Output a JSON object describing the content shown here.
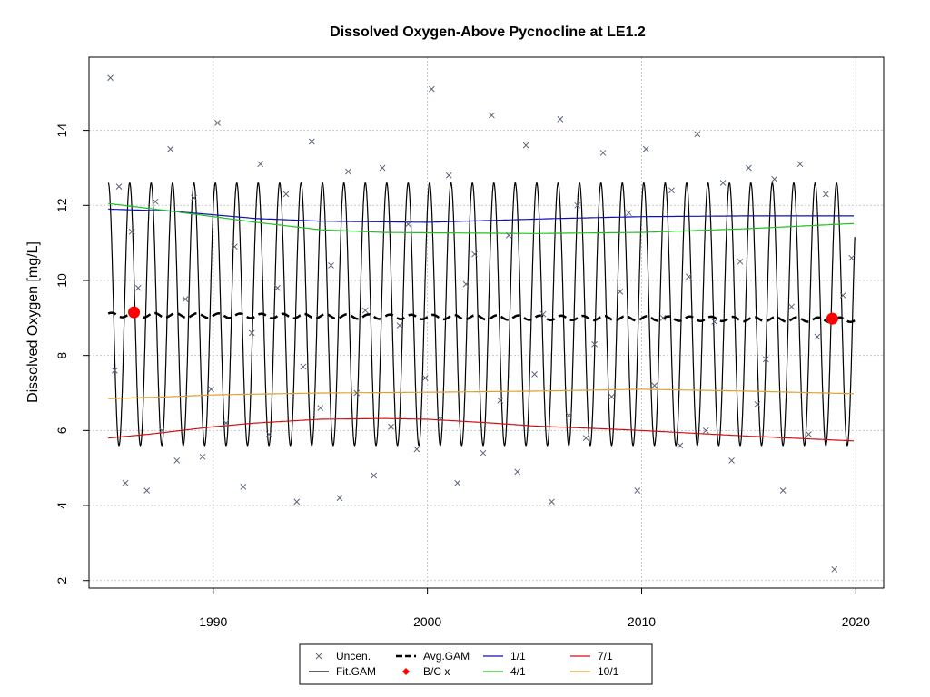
{
  "chart_data": {
    "type": "scatter",
    "title": "Dissolved Oxygen-Above Pycnocline at LE1.2",
    "xlabel": "",
    "ylabel": "Dissolved Oxygen [mg/L]",
    "xlim": [
      1984.2,
      2021.3
    ],
    "ylim": [
      1.8,
      15.95
    ],
    "x_ticks": [
      1990,
      2000,
      2010,
      2020
    ],
    "y_ticks": [
      2,
      4,
      6,
      8,
      10,
      12,
      14
    ],
    "grid": true,
    "legend_position": "bottom-outside",
    "fit_gam": {
      "name": "Fit.GAM",
      "start": 1985.1,
      "end": 2019.95,
      "peak_winter": 12.6,
      "trough_summer": 5.6,
      "cycle_length_years": 1
    },
    "series": [
      {
        "name": "1/1",
        "color": "#1010b0",
        "x": [
          1985.1,
          1988,
          1990,
          1992,
          1995,
          2000,
          2003,
          2006,
          2010,
          2015,
          2020
        ],
        "values": [
          11.9,
          11.85,
          11.75,
          11.65,
          11.58,
          11.55,
          11.6,
          11.65,
          11.7,
          11.72,
          11.72
        ]
      },
      {
        "name": "4/1",
        "color": "#20c020",
        "x": [
          1985.1,
          1988,
          1990,
          1992,
          1995,
          1998,
          2000,
          2005,
          2010,
          2015,
          2020
        ],
        "values": [
          12.05,
          11.85,
          11.7,
          11.55,
          11.35,
          11.28,
          11.27,
          11.25,
          11.28,
          11.38,
          11.52
        ]
      },
      {
        "name": "7/1",
        "color": "#d01010",
        "x": [
          1985.1,
          1987,
          1990,
          1992,
          1995,
          1998,
          2000,
          2003,
          2005,
          2008,
          2010,
          2015,
          2020
        ],
        "values": [
          5.8,
          5.9,
          6.1,
          6.2,
          6.3,
          6.32,
          6.3,
          6.2,
          6.12,
          6.05,
          6.0,
          5.85,
          5.72
        ]
      },
      {
        "name": "10/1",
        "color": "#e0a030",
        "x": [
          1985.1,
          1988,
          1990,
          1995,
          2000,
          2005,
          2010,
          2015,
          2020
        ],
        "values": [
          6.85,
          6.9,
          6.95,
          7.0,
          7.02,
          7.05,
          7.1,
          7.05,
          6.98
        ]
      }
    ],
    "avg_gam": {
      "name": "Avg.GAM",
      "start": 1985.1,
      "end": 2019.95,
      "values_start": 9.08,
      "values_end": 8.95
    },
    "bc_points": {
      "name": "B/C x",
      "color": "#ff0000",
      "x": [
        1986.3,
        2018.9
      ],
      "values": [
        9.15,
        8.98
      ]
    },
    "uncensored": {
      "name": "Uncen.",
      "color": "#5a6678",
      "x": [
        1985.2,
        1985.4,
        1985.6,
        1985.9,
        1986.2,
        1986.5,
        1986.9,
        1987.3,
        1987.6,
        1988.0,
        1988.3,
        1988.7,
        1989.1,
        1989.5,
        1989.9,
        1990.2,
        1990.6,
        1991.0,
        1991.4,
        1991.8,
        1992.2,
        1992.6,
        1993.0,
        1993.4,
        1993.9,
        1994.2,
        1994.6,
        1995.0,
        1995.5,
        1995.9,
        1996.3,
        1996.7,
        1997.1,
        1997.5,
        1997.9,
        1998.3,
        1998.7,
        1999.1,
        1999.5,
        1999.9,
        2000.2,
        2000.6,
        2001.0,
        2001.4,
        2001.8,
        2002.2,
        2002.6,
        2003.0,
        2003.4,
        2003.8,
        2004.2,
        2004.6,
        2005.0,
        2005.4,
        2005.8,
        2006.2,
        2006.6,
        2007.0,
        2007.4,
        2007.8,
        2008.2,
        2008.6,
        2009.0,
        2009.4,
        2009.8,
        2010.2,
        2010.6,
        2011.0,
        2011.4,
        2011.8,
        2012.2,
        2012.6,
        2013.0,
        2013.4,
        2013.8,
        2014.2,
        2014.6,
        2015.0,
        2015.4,
        2015.8,
        2016.2,
        2016.6,
        2017.0,
        2017.4,
        2017.8,
        2018.2,
        2018.6,
        2019.0,
        2019.4,
        2019.8
      ],
      "values": [
        15.4,
        7.6,
        12.5,
        4.6,
        11.3,
        9.8,
        4.4,
        12.1,
        6.0,
        13.5,
        5.2,
        9.5,
        12.2,
        5.3,
        7.1,
        14.2,
        6.2,
        10.9,
        4.5,
        8.6,
        13.1,
        5.9,
        9.8,
        12.3,
        4.1,
        7.7,
        13.7,
        6.6,
        10.4,
        4.2,
        12.9,
        7.0,
        9.2,
        4.8,
        13.0,
        6.1,
        8.8,
        11.5,
        5.5,
        7.4,
        15.1,
        6.3,
        12.8,
        4.6,
        9.9,
        10.7,
        5.4,
        14.4,
        6.8,
        11.2,
        4.9,
        13.6,
        7.5,
        9.1,
        4.1,
        14.3,
        6.4,
        12.0,
        5.8,
        8.3,
        13.4,
        6.9,
        9.7,
        11.8,
        4.4,
        13.5,
        7.2,
        9.0,
        12.4,
        5.6,
        10.1,
        13.9,
        6.0,
        8.9,
        12.6,
        5.2,
        10.5,
        13.0,
        6.7,
        7.9,
        12.7,
        4.4,
        9.3,
        13.1,
        5.9,
        8.5,
        12.3,
        2.3,
        9.6,
        10.6
      ]
    },
    "legend": [
      {
        "label": "Uncen.",
        "kind": "cross",
        "color": "#5a6678"
      },
      {
        "label": "Fit.GAM",
        "kind": "line",
        "color": "#000000"
      },
      {
        "label": "Avg.GAM",
        "kind": "dash",
        "color": "#000000"
      },
      {
        "label": "B/C x",
        "kind": "diamond",
        "color": "#ff0000"
      },
      {
        "label": "1/1",
        "kind": "line",
        "color": "#1010b0"
      },
      {
        "label": "4/1",
        "kind": "line",
        "color": "#20c020"
      },
      {
        "label": "7/1",
        "kind": "line",
        "color": "#d01010"
      },
      {
        "label": "10/1",
        "kind": "line",
        "color": "#e0a030"
      }
    ]
  }
}
